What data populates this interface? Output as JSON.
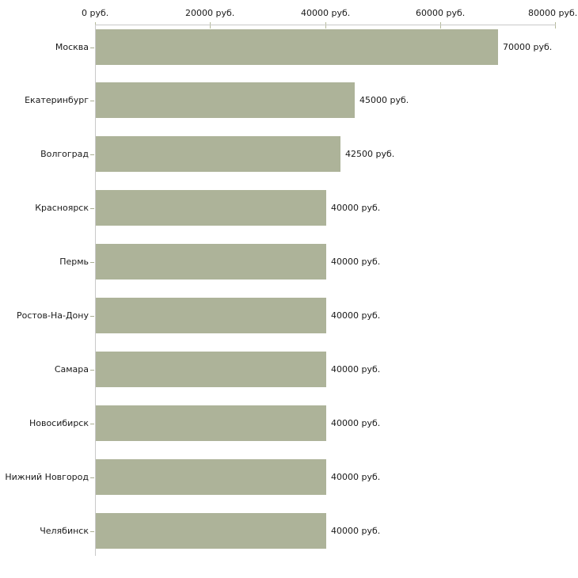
{
  "chart": {
    "colors": {
      "background": "#ffffff",
      "bar": "#adb399",
      "axis_line": "#c9c9c9",
      "axis_tick": "#b6bb9c",
      "category_tick": "#a9ae93",
      "text": "#1a1a1a"
    }
  },
  "chart_data": {
    "type": "bar",
    "orientation": "horizontal",
    "title": "",
    "xlabel": "",
    "ylabel": "",
    "grid": false,
    "legend": false,
    "xlim": [
      0,
      80000
    ],
    "x_tick_values": [
      0,
      20000,
      40000,
      60000,
      80000
    ],
    "x_tick_labels": [
      "0 руб.",
      "20000 руб.",
      "40000 руб.",
      "60000 руб.",
      "80000 руб."
    ],
    "categories": [
      "Москва",
      "Екатеринбург",
      "Волгоград",
      "Красноярск",
      "Пермь",
      "Ростов-На-Дону",
      "Самара",
      "Новосибирск",
      "Нижний Новгород",
      "Челябинск"
    ],
    "values": [
      70000,
      45000,
      42500,
      40000,
      40000,
      40000,
      40000,
      40000,
      40000,
      40000
    ],
    "value_labels": [
      "70000 руб.",
      "45000 руб.",
      "42500 руб.",
      "40000 руб.",
      "40000 руб.",
      "40000 руб.",
      "40000 руб.",
      "40000 руб.",
      "40000 руб.",
      "40000 руб."
    ]
  }
}
